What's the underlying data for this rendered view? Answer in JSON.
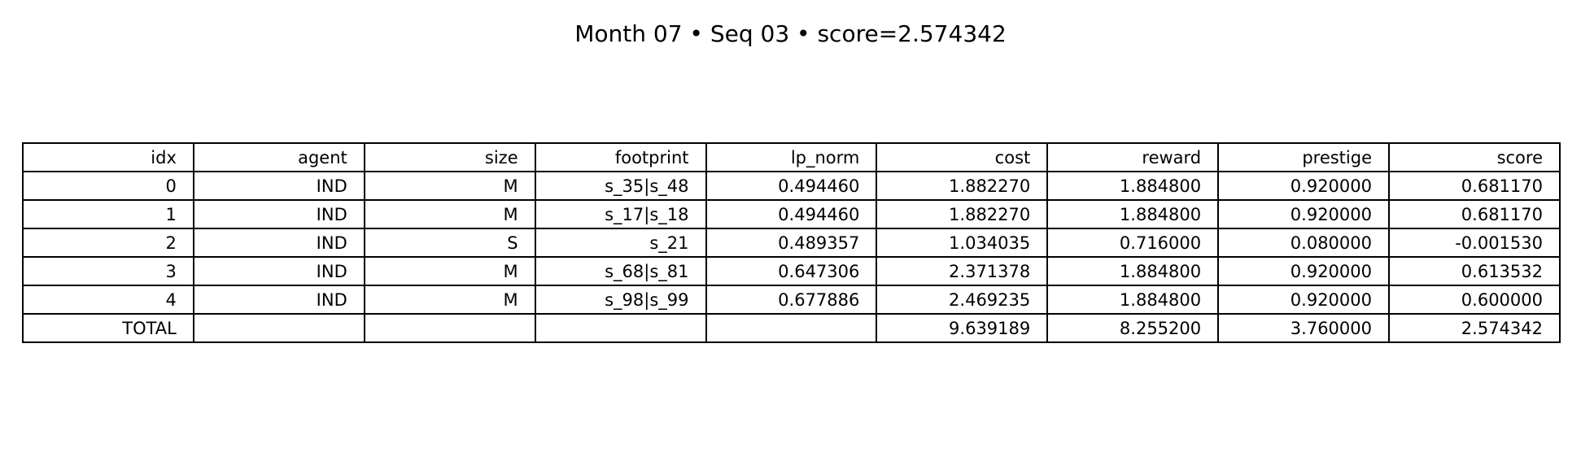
{
  "title": "Month 07 • Seq 03 • score=2.574342",
  "chart_data": {
    "type": "table",
    "title": "Month 07 • Seq 03 • score=2.574342",
    "columns": [
      "idx",
      "agent",
      "size",
      "footprint",
      "lp_norm",
      "cost",
      "reward",
      "prestige",
      "score"
    ],
    "rows": [
      [
        "0",
        "IND",
        "M",
        "s_35|s_48",
        "0.494460",
        "1.882270",
        "1.884800",
        "0.920000",
        "0.681170"
      ],
      [
        "1",
        "IND",
        "M",
        "s_17|s_18",
        "0.494460",
        "1.882270",
        "1.884800",
        "0.920000",
        "0.681170"
      ],
      [
        "2",
        "IND",
        "S",
        "s_21",
        "0.489357",
        "1.034035",
        "0.716000",
        "0.080000",
        "-0.001530"
      ],
      [
        "3",
        "IND",
        "M",
        "s_68|s_81",
        "0.647306",
        "2.371378",
        "1.884800",
        "0.920000",
        "0.613532"
      ],
      [
        "4",
        "IND",
        "M",
        "s_98|s_99",
        "0.677886",
        "2.469235",
        "1.884800",
        "0.920000",
        "0.600000"
      ],
      [
        "TOTAL",
        "",
        "",
        "",
        "",
        "9.639189",
        "8.255200",
        "3.760000",
        "2.574342"
      ]
    ]
  }
}
